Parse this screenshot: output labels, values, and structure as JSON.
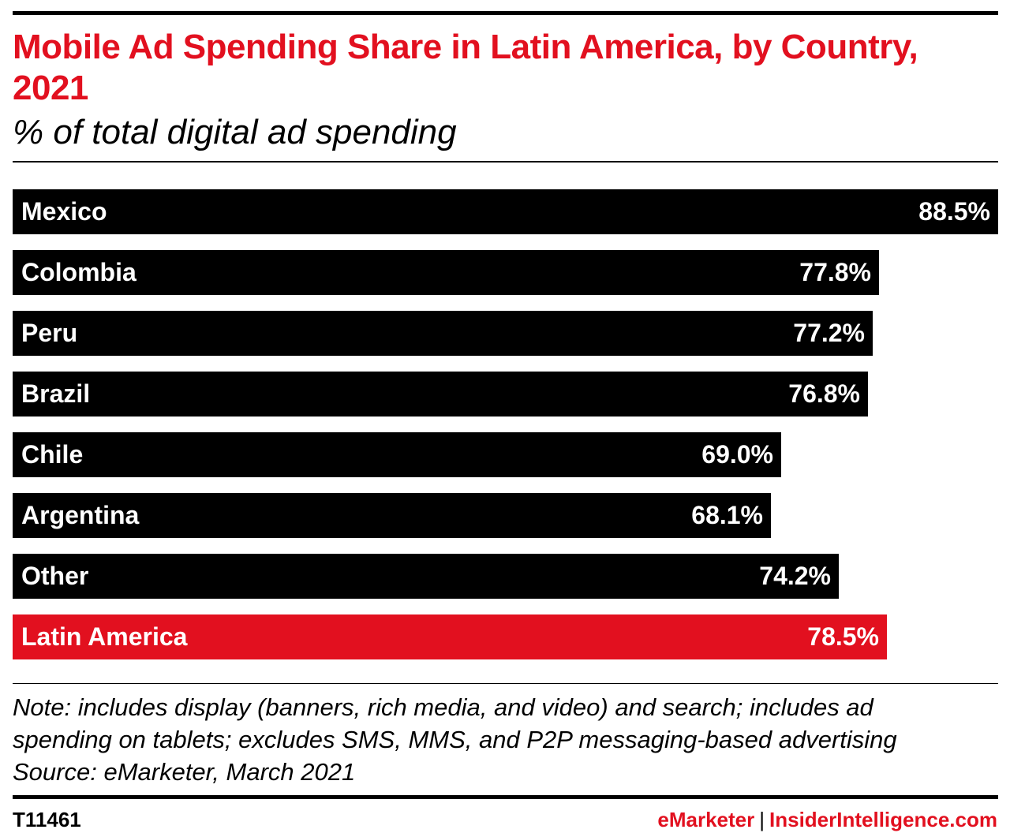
{
  "header": {
    "title": "Mobile Ad Spending Share in Latin America, by Country, 2021",
    "subtitle": "% of total digital ad spending"
  },
  "chart_data": {
    "type": "bar",
    "orientation": "horizontal",
    "title": "Mobile Ad Spending Share in Latin America, by Country, 2021",
    "subtitle": "% of total digital ad spending",
    "categories": [
      "Mexico",
      "Colombia",
      "Peru",
      "Brazil",
      "Chile",
      "Argentina",
      "Other",
      "Latin America"
    ],
    "values": [
      88.5,
      77.8,
      77.2,
      76.8,
      69.0,
      68.1,
      74.2,
      78.5
    ],
    "value_labels": [
      "88.5%",
      "77.8%",
      "77.2%",
      "76.8%",
      "69.0%",
      "68.1%",
      "74.2%",
      "78.5%"
    ],
    "colors": [
      "#000000",
      "#000000",
      "#000000",
      "#000000",
      "#000000",
      "#000000",
      "#000000",
      "#e2101f"
    ],
    "xlim": [
      0,
      88.5
    ],
    "grid": false,
    "legend": "none"
  },
  "footer": {
    "note_lines": [
      "Note: includes display (banners, rich media, and video) and search; includes ad",
      "spending on tablets; excludes SMS, MMS, and P2P messaging-based advertising",
      "Source: eMarketer, March 2021"
    ],
    "chart_id": "T11461",
    "brand_primary": "eMarketer",
    "brand_separator": "|",
    "brand_secondary": "InsiderIntelligence.com"
  },
  "colors": {
    "accent_red": "#e2101f",
    "bar_black": "#000000",
    "label_white": "#ffffff"
  }
}
